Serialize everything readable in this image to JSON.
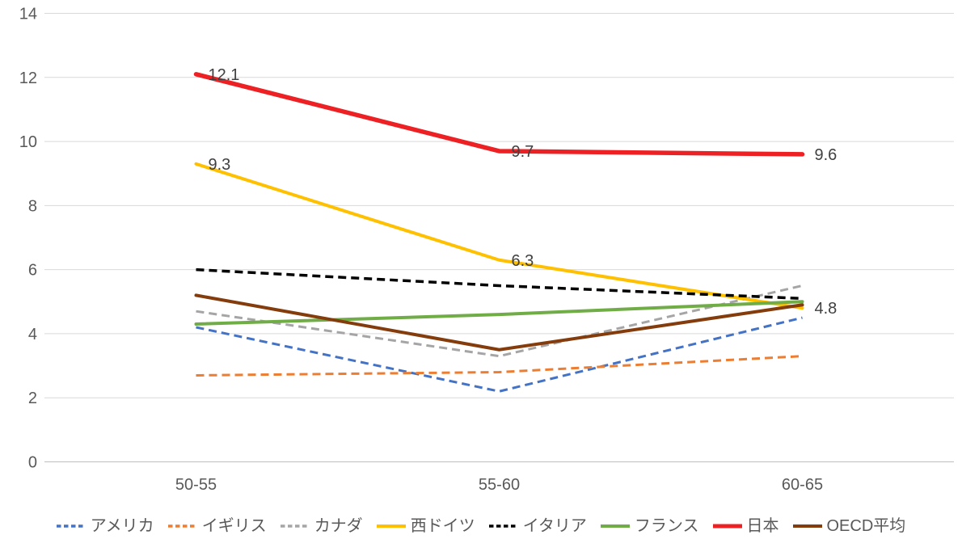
{
  "chart_data": {
    "type": "line",
    "title": "",
    "categories": [
      "50-55",
      "55-60",
      "60-65"
    ],
    "y_axis": {
      "min": 0,
      "max": 14,
      "step": 2,
      "tick_labels": [
        "0",
        "2",
        "4",
        "6",
        "8",
        "10",
        "12",
        "14"
      ]
    },
    "grid": true,
    "legend_position": "bottom",
    "series": [
      {
        "name": "アメリカ",
        "color": "#4472C4",
        "style": "dashed",
        "width": 3,
        "values": [
          4.2,
          2.2,
          4.5
        ]
      },
      {
        "name": "イギリス",
        "color": "#ED7D31",
        "style": "dashed",
        "width": 3,
        "values": [
          2.7,
          2.8,
          3.3
        ]
      },
      {
        "name": "カナダ",
        "color": "#A5A5A5",
        "style": "dashed",
        "width": 3,
        "values": [
          4.7,
          3.3,
          5.5
        ]
      },
      {
        "name": "西ドイツ",
        "color": "#FFC000",
        "style": "solid",
        "width": 4,
        "values": [
          9.3,
          6.3,
          4.8
        ],
        "data_labels": [
          "9.3",
          "6.3",
          "4.8"
        ]
      },
      {
        "name": "イタリア",
        "color": "#000000",
        "style": "dashed",
        "width": 3.5,
        "values": [
          6.0,
          5.5,
          5.1
        ]
      },
      {
        "name": "フランス",
        "color": "#70AD47",
        "style": "solid",
        "width": 4,
        "values": [
          4.3,
          4.6,
          5.0
        ]
      },
      {
        "name": "日本",
        "color": "#ED2024",
        "style": "solid",
        "width": 5.5,
        "values": [
          12.1,
          9.7,
          9.6
        ],
        "data_labels": [
          "12.1",
          "9.7",
          "9.6"
        ]
      },
      {
        "name": "OECD平均",
        "color": "#843C0C",
        "style": "solid",
        "width": 4,
        "values": [
          5.2,
          3.5,
          4.9
        ]
      }
    ],
    "colors": {
      "data_label": "#404040",
      "axis_text": "#595959",
      "gridline": "#D9D9D9",
      "axis_line": "#BFBFBF",
      "background": "#FFFFFF"
    }
  }
}
